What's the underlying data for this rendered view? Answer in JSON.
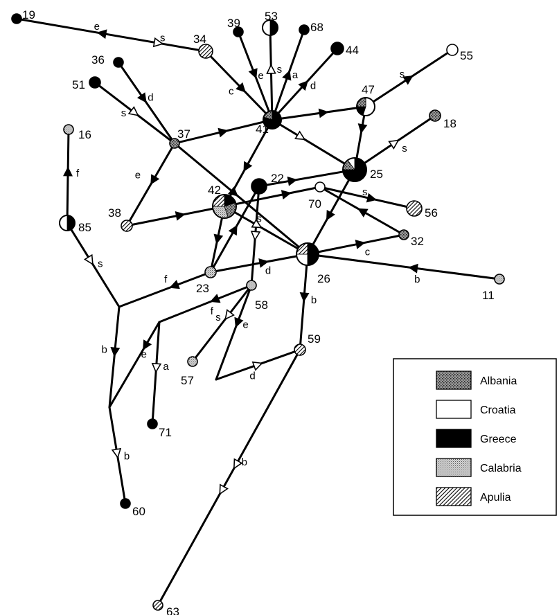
{
  "nodes": [
    {
      "id": "19",
      "label": "19",
      "fill": "greece"
    },
    {
      "id": "34",
      "label": "34",
      "fill": "apulia"
    },
    {
      "id": "39",
      "label": "39",
      "fill": "greece"
    },
    {
      "id": "53",
      "label": "53",
      "fill": "pie-greece-croatia"
    },
    {
      "id": "68",
      "label": "68",
      "fill": "greece"
    },
    {
      "id": "44",
      "label": "44",
      "fill": "greece"
    },
    {
      "id": "55",
      "label": "55",
      "fill": "croatia"
    },
    {
      "id": "36",
      "label": "36",
      "fill": "greece"
    },
    {
      "id": "51",
      "label": "51",
      "fill": "greece"
    },
    {
      "id": "47",
      "label": "47",
      "fill": "pie-47"
    },
    {
      "id": "41",
      "label": "41",
      "fill": "pie-41"
    },
    {
      "id": "18",
      "label": "18",
      "fill": "albania"
    },
    {
      "id": "16",
      "label": "16",
      "fill": "calabria"
    },
    {
      "id": "37",
      "label": "37",
      "fill": "albania"
    },
    {
      "id": "25",
      "label": "25",
      "fill": "pie-25"
    },
    {
      "id": "22",
      "label": "22",
      "fill": "greece"
    },
    {
      "id": "42",
      "label": "42",
      "fill": "pie-42"
    },
    {
      "id": "70",
      "label": "70",
      "fill": "croatia"
    },
    {
      "id": "56",
      "label": "56",
      "fill": "apulia"
    },
    {
      "id": "85",
      "label": "85",
      "fill": "pie-greece-croatia"
    },
    {
      "id": "38",
      "label": "38",
      "fill": "apulia"
    },
    {
      "id": "32",
      "label": "32",
      "fill": "albania"
    },
    {
      "id": "26",
      "label": "26",
      "fill": "pie-26"
    },
    {
      "id": "23",
      "label": "23",
      "fill": "calabria"
    },
    {
      "id": "11",
      "label": "11",
      "fill": "calabria"
    },
    {
      "id": "58",
      "label": "58",
      "fill": "calabria"
    },
    {
      "id": "59",
      "label": "59",
      "fill": "apulia"
    },
    {
      "id": "57",
      "label": "57",
      "fill": "calabria"
    },
    {
      "id": "71",
      "label": "71",
      "fill": "greece"
    },
    {
      "id": "60",
      "label": "60",
      "fill": "greece"
    },
    {
      "id": "63",
      "label": "63",
      "fill": "apulia"
    }
  ],
  "edge_labels": [
    "e",
    "s",
    "c",
    "e",
    "s",
    "a",
    "d",
    "s",
    "d",
    "s",
    "s",
    "f",
    "e",
    "s",
    "s",
    "s",
    "c",
    "d",
    "b",
    "f",
    "b",
    "f",
    "e",
    "s",
    "e",
    "a",
    "d",
    "b",
    "b",
    "b"
  ],
  "legend": {
    "items": [
      {
        "label": "Albania",
        "fill": "albania"
      },
      {
        "label": "Croatia",
        "fill": "croatia"
      },
      {
        "label": "Greece",
        "fill": "greece"
      },
      {
        "label": "Calabria",
        "fill": "calabria"
      },
      {
        "label": "Apulia",
        "fill": "apulia"
      }
    ]
  }
}
